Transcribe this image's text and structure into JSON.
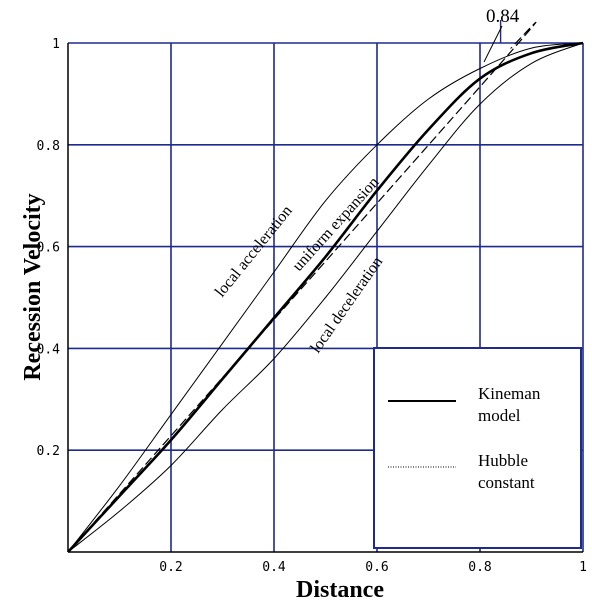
{
  "chart_data": {
    "type": "line",
    "xlabel": "Distance",
    "ylabel": "Recession Velocity",
    "xlim": [
      0,
      1
    ],
    "ylim": [
      0,
      1
    ],
    "grid": true,
    "x_ticks": [
      {
        "value": 0.2,
        "label": "0.2"
      },
      {
        "value": 0.4,
        "label": "0.4"
      },
      {
        "value": 0.6,
        "label": "0.6"
      },
      {
        "value": 0.8,
        "label": "0.8"
      },
      {
        "value": 1.0,
        "label": "1"
      }
    ],
    "y_ticks": [
      {
        "value": 0.2,
        "label": "0.2"
      },
      {
        "value": 0.4,
        "label": "0.4"
      },
      {
        "value": 0.6,
        "label": "0.6"
      },
      {
        "value": 0.8,
        "label": "0.8"
      },
      {
        "value": 1.0,
        "label": "1"
      }
    ],
    "series": [
      {
        "name": "local acceleration",
        "style": "thin",
        "x": [
          0,
          0.1,
          0.2,
          0.3,
          0.4,
          0.5,
          0.6,
          0.7,
          0.8,
          0.9,
          1.0
        ],
        "y": [
          0,
          0.13,
          0.27,
          0.41,
          0.55,
          0.69,
          0.8,
          0.89,
          0.95,
          0.99,
          1.0
        ]
      },
      {
        "name": "Kineman model",
        "style": "thick",
        "x": [
          0,
          0.1,
          0.2,
          0.3,
          0.4,
          0.5,
          0.6,
          0.7,
          0.8,
          0.9,
          1.0
        ],
        "y": [
          0,
          0.11,
          0.22,
          0.34,
          0.46,
          0.58,
          0.71,
          0.83,
          0.93,
          0.98,
          1.0
        ]
      },
      {
        "name": "uniform expansion",
        "style": "dashed",
        "x": [
          0,
          0.84,
          0.86
        ],
        "y": [
          0,
          0.96,
          0.99
        ]
      },
      {
        "name": "local deceleration",
        "style": "thin",
        "x": [
          0,
          0.1,
          0.2,
          0.3,
          0.4,
          0.5,
          0.6,
          0.7,
          0.8,
          0.9,
          1.0
        ],
        "y": [
          0,
          0.08,
          0.17,
          0.28,
          0.38,
          0.5,
          0.63,
          0.76,
          0.88,
          0.96,
          1.0
        ]
      }
    ],
    "curve_labels": [
      "local acceleration",
      "uniform expansion",
      "local deceleration"
    ],
    "annotations": [
      {
        "text": "0.84",
        "x": 0.84
      }
    ],
    "legend": {
      "position": "bottom-right",
      "entries": [
        {
          "line1": "Kineman",
          "line2": "model",
          "style": "solid"
        },
        {
          "line1": "Hubble",
          "line2": "constant",
          "style": "dotted"
        }
      ]
    },
    "colors": {
      "grid": "#1e2a8c",
      "curves": "#000000"
    }
  }
}
